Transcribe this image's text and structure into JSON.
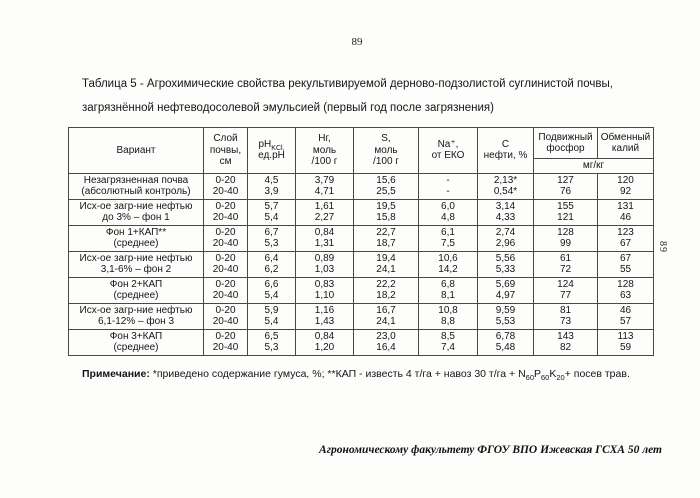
{
  "page": {
    "top_page_number": "89",
    "side_page_number": "89",
    "title_line1": "Таблица 5 - Агрохимические свойства рекультивируемой дерново-подзолистой суглинистой почвы,",
    "title_line2": "загрязнённой нефтеводосолевой эмульсией (первый год после загрязнения)",
    "footer": "Агрономическому факультету ФГОУ ВПО Ижевская ГСХА 50 лет"
  },
  "note": {
    "label": "Примечание:",
    "part1": " *приведено содержание гумуса, %; **КАП - известь 4 т/га + навоз 30 т/га + N",
    "sub1": "60",
    "part2": "P",
    "sub2": "60",
    "part3": "K",
    "sub3": "20",
    "part4": "+ посев трав."
  },
  "table": {
    "headers": {
      "variant": "Вариант",
      "layer": "Слой\nпочвы,\nсм",
      "ph_main": "pH",
      "ph_sub": "KCl,",
      "ph_unit": "ед.pH",
      "hg": "Нг,\nмоль\n/100 г",
      "s": "S,\nмоль\n/100 г",
      "na": "Na⁺,\nот ЕКО",
      "oil": "С\nнефти, %",
      "p": "Подвижный\nфосфор",
      "k": "Обменный\nкалий",
      "unit": "мг/кг"
    },
    "rows": [
      [
        "Незагрязненная почва\n(абсолютный контроль)",
        "0-20\n20-40",
        "4,5\n3,9",
        "3,79\n4,71",
        "15,6\n25,5",
        "-\n-",
        "2,13*\n0,54*",
        "127\n76",
        "120\n92"
      ],
      [
        "Исх-ое загр-ние нефтью\nдо 3% – фон 1",
        "0-20\n20-40",
        "5,7\n5,4",
        "1,61\n2,27",
        "19,5\n15,8",
        "6,0\n4,8",
        "3,14\n4,33",
        "155\n121",
        "131\n46"
      ],
      [
        "Фон 1+КАП**\n(среднее)",
        "0-20\n20-40",
        "6,7\n5,3",
        "0,84\n1,31",
        "22,7\n18,7",
        "6,1\n7,5",
        "2,74\n2,96",
        "128\n99",
        "123\n67"
      ],
      [
        "Исх-ое загр-ние нефтью\n3,1-6% – фон 2",
        "0-20\n20-40",
        "6,4\n6,2",
        "0,89\n1,03",
        "19,4\n24,1",
        "10,6\n14,2",
        "5,56\n5,33",
        "61\n72",
        "67\n55"
      ],
      [
        "Фон 2+КАП\n(среднее)",
        "0-20\n20-40",
        "6,6\n5,4",
        "0,83\n1,10",
        "22,2\n18,2",
        "6,8\n8,1",
        "5,69\n4,97",
        "124\n77",
        "128\n63"
      ],
      [
        "Исх-ое загр-ние нефтью\n6,1-12% – фон 3",
        "0-20\n20-40",
        "5,9\n5,4",
        "1,16\n1,43",
        "16,7\n24,1",
        "10,8\n8,8",
        "9,59\n5,53",
        "81\n73",
        "46\n57"
      ],
      [
        "Фон 3+КАП\n(среднее)",
        "0-20\n20-40",
        "6,5\n5,3",
        "0,84\n1,20",
        "23,0\n16,4",
        "8,5\n7,4",
        "6,78\n5,48",
        "143\n82",
        "113\n59"
      ]
    ]
  }
}
